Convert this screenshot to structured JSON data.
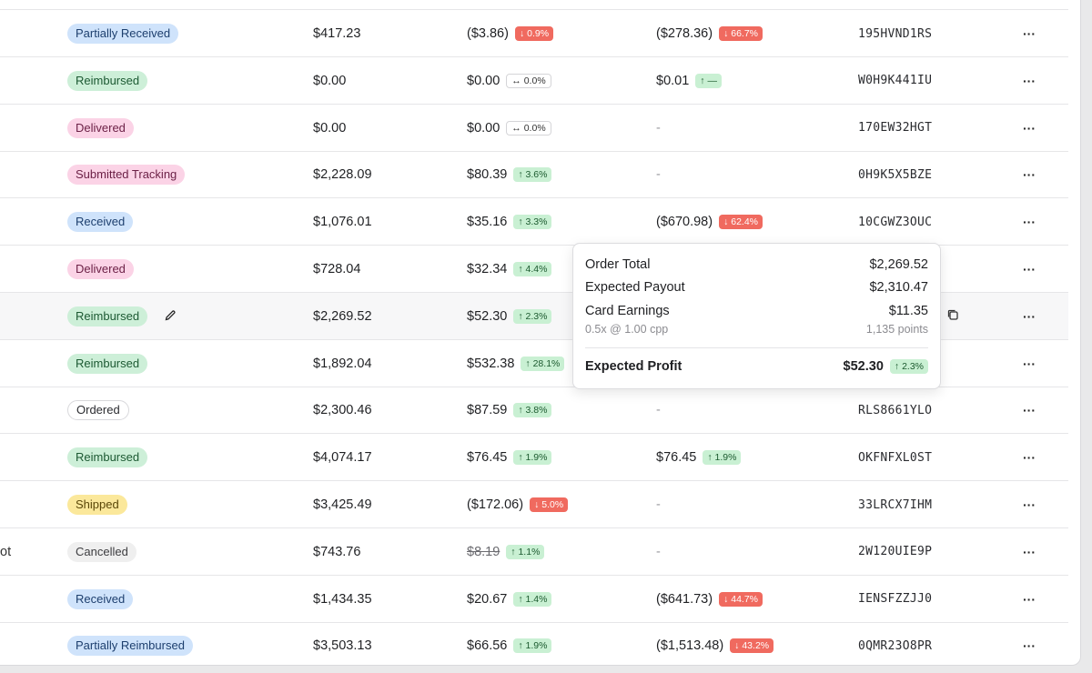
{
  "rows": [
    {
      "tail": "",
      "status": "Partially Received",
      "status_color": "blue",
      "total": "$417.23",
      "payout": "($3.86)",
      "payout_delta": "0.9%",
      "payout_dir": "down",
      "profit": "($278.36)",
      "profit_delta": "66.7%",
      "profit_dir": "down",
      "order": "195HVND1RS",
      "more": "···"
    },
    {
      "tail": "",
      "status": "Reimbursed",
      "status_color": "green",
      "total": "$0.00",
      "payout": "$0.00",
      "payout_delta": "0.0%",
      "payout_dir": "flat",
      "profit": "$0.01",
      "profit_delta": "—",
      "profit_dir": "up",
      "order": "W0H9K441IU",
      "more": "···"
    },
    {
      "tail": "",
      "status": "Delivered",
      "status_color": "pink",
      "total": "$0.00",
      "payout": "$0.00",
      "payout_delta": "0.0%",
      "payout_dir": "flat",
      "profit": "-",
      "profit_delta": "",
      "profit_dir": "none",
      "order": "170EW32HGT",
      "more": "···"
    },
    {
      "tail": "",
      "status": "Submitted Tracking",
      "status_color": "pink",
      "total": "$2,228.09",
      "payout": "$80.39",
      "payout_delta": "3.6%",
      "payout_dir": "up",
      "profit": "-",
      "profit_delta": "",
      "profit_dir": "none",
      "order": "0H9K5X5BZE",
      "more": "···"
    },
    {
      "tail": "",
      "status": "Received",
      "status_color": "blue",
      "total": "$1,076.01",
      "payout": "$35.16",
      "payout_delta": "3.3%",
      "payout_dir": "up",
      "profit": "($670.98)",
      "profit_delta": "62.4%",
      "profit_dir": "down",
      "order": "10CGWZ3OUC",
      "more": "···"
    },
    {
      "tail": "",
      "status": "Delivered",
      "status_color": "pink",
      "total": "$728.04",
      "payout": "$32.34",
      "payout_delta": "4.4%",
      "payout_dir": "up",
      "profit": "",
      "profit_delta": "",
      "profit_dir": "none",
      "order": "",
      "more": "···"
    },
    {
      "tail": "",
      "status": "Reimbursed",
      "status_color": "green",
      "total": "$2,269.52",
      "payout": "$52.30",
      "payout_delta": "2.3%",
      "payout_dir": "up",
      "profit": "",
      "profit_delta": "",
      "profit_dir": "none",
      "order": "",
      "more": "···",
      "highlight": true
    },
    {
      "tail": "",
      "status": "Reimbursed",
      "status_color": "green",
      "total": "$1,892.04",
      "payout": "$532.38",
      "payout_delta": "28.1%",
      "payout_dir": "up",
      "profit": "",
      "profit_delta": "",
      "profit_dir": "none",
      "order": "",
      "more": "···"
    },
    {
      "tail": "",
      "status": "Ordered",
      "status_color": "outline",
      "total": "$2,300.46",
      "payout": "$87.59",
      "payout_delta": "3.8%",
      "payout_dir": "up",
      "profit": "-",
      "profit_delta": "",
      "profit_dir": "none",
      "order": "RLS8661YLO",
      "more": "···"
    },
    {
      "tail": "",
      "status": "Reimbursed",
      "status_color": "green",
      "total": "$4,074.17",
      "payout": "$76.45",
      "payout_delta": "1.9%",
      "payout_dir": "up",
      "profit": "$76.45",
      "profit_delta": "1.9%",
      "profit_dir": "up",
      "order": "OKFNFXL0ST",
      "more": "···"
    },
    {
      "tail": "",
      "status": "Shipped",
      "status_color": "yellow",
      "total": "$3,425.49",
      "payout": "($172.06)",
      "payout_delta": "5.0%",
      "payout_dir": "down",
      "profit": "-",
      "profit_delta": "",
      "profit_dir": "none",
      "order": "33LRCX7IHM",
      "more": "···"
    },
    {
      "tail": "ot",
      "status": "Cancelled",
      "status_color": "gray",
      "total": "$743.76",
      "payout": "$8.19",
      "payout_strike": true,
      "payout_delta": "1.1%",
      "payout_dir": "up",
      "profit": "-",
      "profit_delta": "",
      "profit_dir": "none",
      "order": "2W120UIE9P",
      "more": "···"
    },
    {
      "tail": "",
      "status": "Received",
      "status_color": "blue",
      "total": "$1,434.35",
      "payout": "$20.67",
      "payout_delta": "1.4%",
      "payout_dir": "up",
      "profit": "($641.73)",
      "profit_delta": "44.7%",
      "profit_dir": "down",
      "order": "IENSFZZJJ0",
      "more": "···"
    },
    {
      "tail": "",
      "status": "Partially Reimbursed",
      "status_color": "blue",
      "total": "$3,503.13",
      "payout": "$66.56",
      "payout_delta": "1.9%",
      "payout_dir": "up",
      "profit": "($1,513.48)",
      "profit_delta": "43.2%",
      "profit_dir": "down",
      "order": "0QMR23O8PR",
      "more": "···"
    }
  ],
  "tooltip": {
    "order_total_label": "Order Total",
    "order_total_value": "$2,269.52",
    "expected_payout_label": "Expected Payout",
    "expected_payout_value": "$2,310.47",
    "card_earnings_label": "Card Earnings",
    "card_earnings_value": "$11.35",
    "card_earnings_rate": "0.5x @ 1.00 cpp",
    "card_earnings_points": "1,135 points",
    "expected_profit_label": "Expected Profit",
    "expected_profit_value": "$52.30",
    "expected_profit_delta": "2.3%"
  },
  "icons": {
    "edit": "pencil-icon",
    "copy": "copy-icon",
    "more": "ellipsis-icon",
    "arrow_up": "↑",
    "arrow_down": "↓",
    "arrow_flat": "↔"
  },
  "colors": {
    "status_blue": "#cfe3fb",
    "status_green": "#cdefd8",
    "status_pink": "#fbd3e6",
    "status_yellow": "#fbe89b",
    "delta_up": "#c9f0d3",
    "delta_down": "#f06a5f"
  }
}
